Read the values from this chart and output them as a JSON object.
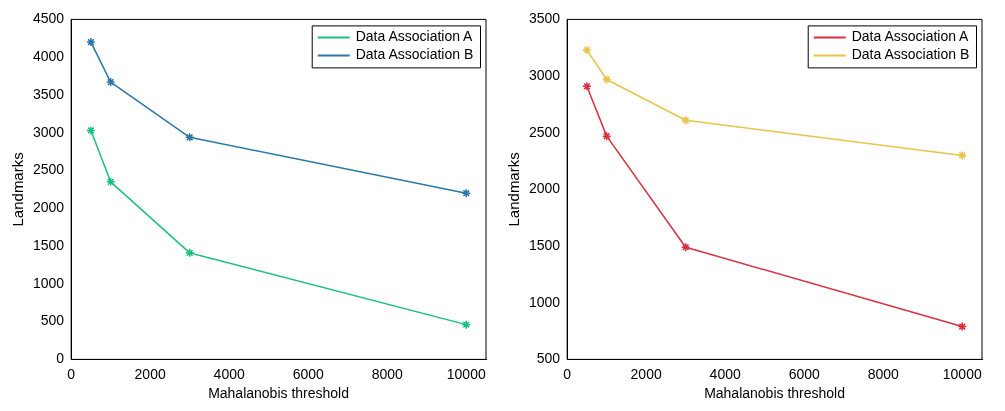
{
  "chart_data": [
    {
      "type": "line",
      "xlabel": "Mahalanobis threshold",
      "ylabel": "Landmarks",
      "x": [
        500,
        1000,
        3000,
        10000
      ],
      "xlim": [
        0,
        10500
      ],
      "xticks": [
        0,
        2000,
        4000,
        6000,
        8000,
        10000
      ],
      "ylim": [
        0,
        4500
      ],
      "yticks": [
        0,
        500,
        1000,
        1500,
        2000,
        2500,
        3000,
        3500,
        4000,
        4500
      ],
      "grid": false,
      "legend": "top right",
      "marker": "cross",
      "line_style": "solid",
      "series": [
        {
          "name": "Data Association A",
          "color": "#1abf80",
          "values": [
            3030,
            2350,
            1410,
            460
          ]
        },
        {
          "name": "Data Association B",
          "color": "#2a78a8",
          "values": [
            4200,
            3670,
            2940,
            2200
          ]
        }
      ]
    },
    {
      "type": "line",
      "xlabel": "Mahalanobis threshold",
      "ylabel": "Landmarks",
      "x": [
        500,
        1000,
        3000,
        10000
      ],
      "xlim": [
        0,
        10500
      ],
      "xticks": [
        0,
        2000,
        4000,
        6000,
        8000,
        10000
      ],
      "ylim": [
        500,
        3500
      ],
      "yticks": [
        500,
        1000,
        1500,
        2000,
        2500,
        3000,
        3500
      ],
      "grid": false,
      "legend": "top right",
      "marker": "cross",
      "line_style": "solid",
      "series": [
        {
          "name": "Data Association A",
          "color": "#d8303e",
          "values": [
            2910,
            2470,
            1490,
            790
          ]
        },
        {
          "name": "Data Association B",
          "color": "#e8c448",
          "values": [
            3230,
            2970,
            2610,
            2300
          ]
        }
      ]
    }
  ]
}
